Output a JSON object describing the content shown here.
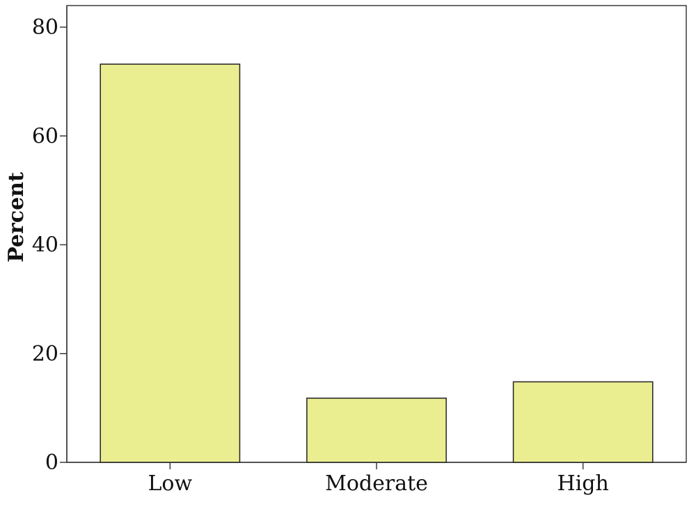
{
  "chart_data": {
    "type": "bar",
    "categories": [
      "Low",
      "Moderate",
      "High"
    ],
    "values": [
      73.2,
      11.8,
      14.8
    ],
    "title": "",
    "xlabel": "",
    "ylabel": "Percent",
    "ylim": [
      0,
      80
    ],
    "yticks": [
      "0",
      "20",
      "40",
      "60",
      "80"
    ],
    "grid": false,
    "bar_color": "#ebed91",
    "bar_edge_color": "#222222"
  }
}
